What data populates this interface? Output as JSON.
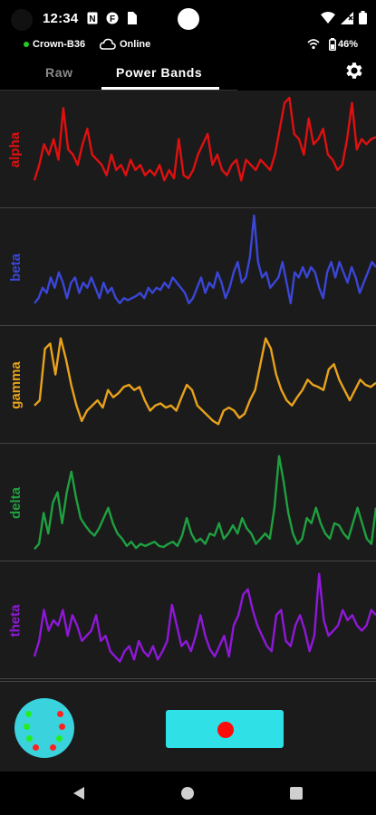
{
  "status_bar": {
    "time": "12:34",
    "icons": [
      "notification-icon",
      "app-icon",
      "sim-card-icon",
      "wifi-icon",
      "signal-icon",
      "battery-icon"
    ]
  },
  "device_status": {
    "device_name": "Crown-B36",
    "connection": "Online",
    "battery_percent": "46%",
    "connected_color": "#22cc22"
  },
  "tabs": [
    {
      "label": "Raw",
      "selected": false
    },
    {
      "label": "Power Bands",
      "selected": true
    }
  ],
  "settings_icon": "gear-icon",
  "bands": [
    {
      "name": "alpha",
      "color": "#e01010",
      "values": [
        0.2,
        0.35,
        0.55,
        0.45,
        0.6,
        0.4,
        0.9,
        0.5,
        0.45,
        0.35,
        0.55,
        0.7,
        0.45,
        0.4,
        0.35,
        0.25,
        0.45,
        0.3,
        0.35,
        0.25,
        0.4,
        0.3,
        0.35,
        0.25,
        0.3,
        0.25,
        0.35,
        0.2,
        0.3,
        0.22,
        0.6,
        0.25,
        0.22,
        0.3,
        0.45,
        0.55,
        0.65,
        0.35,
        0.45,
        0.3,
        0.25,
        0.35,
        0.4,
        0.2,
        0.4,
        0.35,
        0.3,
        0.4,
        0.35,
        0.3,
        0.45,
        0.7,
        0.95,
        1.0,
        0.65,
        0.6,
        0.45,
        0.8,
        0.55,
        0.6,
        0.7,
        0.45,
        0.4,
        0.3,
        0.35,
        0.6,
        0.95,
        0.5,
        0.6,
        0.55,
        0.6,
        0.62
      ]
    },
    {
      "name": "beta",
      "color": "#3a46d8",
      "values": [
        0.15,
        0.2,
        0.3,
        0.25,
        0.4,
        0.3,
        0.45,
        0.35,
        0.2,
        0.35,
        0.4,
        0.25,
        0.35,
        0.3,
        0.4,
        0.3,
        0.2,
        0.35,
        0.25,
        0.3,
        0.2,
        0.15,
        0.2,
        0.18,
        0.2,
        0.22,
        0.25,
        0.2,
        0.3,
        0.25,
        0.3,
        0.28,
        0.35,
        0.3,
        0.4,
        0.35,
        0.3,
        0.25,
        0.15,
        0.2,
        0.3,
        0.4,
        0.25,
        0.35,
        0.3,
        0.45,
        0.35,
        0.2,
        0.3,
        0.45,
        0.55,
        0.35,
        0.4,
        0.6,
        1.0,
        0.55,
        0.4,
        0.45,
        0.3,
        0.35,
        0.4,
        0.55,
        0.35,
        0.15,
        0.45,
        0.4,
        0.5,
        0.4,
        0.5,
        0.45,
        0.3,
        0.2,
        0.45,
        0.55,
        0.4,
        0.55,
        0.45,
        0.35,
        0.5,
        0.4,
        0.25,
        0.35,
        0.45,
        0.55,
        0.5
      ]
    },
    {
      "name": "gamma",
      "color": "#e8a21c",
      "values": [
        0.3,
        0.35,
        0.85,
        0.9,
        0.6,
        0.95,
        0.75,
        0.5,
        0.3,
        0.15,
        0.25,
        0.3,
        0.35,
        0.28,
        0.45,
        0.38,
        0.42,
        0.48,
        0.5,
        0.45,
        0.48,
        0.35,
        0.25,
        0.3,
        0.32,
        0.28,
        0.3,
        0.25,
        0.38,
        0.5,
        0.45,
        0.3,
        0.25,
        0.2,
        0.15,
        0.12,
        0.25,
        0.28,
        0.25,
        0.18,
        0.22,
        0.35,
        0.45,
        0.7,
        0.95,
        0.85,
        0.6,
        0.45,
        0.35,
        0.3,
        0.38,
        0.45,
        0.55,
        0.5,
        0.48,
        0.45,
        0.65,
        0.7,
        0.55,
        0.45,
        0.35,
        0.45,
        0.55,
        0.5,
        0.48,
        0.52
      ]
    },
    {
      "name": "delta",
      "color": "#1fa040",
      "values": [
        0.05,
        0.1,
        0.4,
        0.2,
        0.5,
        0.6,
        0.3,
        0.6,
        0.8,
        0.55,
        0.35,
        0.28,
        0.22,
        0.18,
        0.25,
        0.35,
        0.45,
        0.3,
        0.2,
        0.15,
        0.08,
        0.12,
        0.06,
        0.1,
        0.08,
        0.1,
        0.12,
        0.08,
        0.07,
        0.1,
        0.12,
        0.08,
        0.18,
        0.35,
        0.2,
        0.12,
        0.15,
        0.1,
        0.2,
        0.18,
        0.3,
        0.15,
        0.2,
        0.28,
        0.2,
        0.35,
        0.25,
        0.2,
        0.1,
        0.15,
        0.2,
        0.15,
        0.45,
        0.95,
        0.7,
        0.4,
        0.2,
        0.1,
        0.15,
        0.35,
        0.3,
        0.45,
        0.3,
        0.2,
        0.15,
        0.3,
        0.28,
        0.2,
        0.15,
        0.3,
        0.45,
        0.3,
        0.15,
        0.1,
        0.45
      ]
    },
    {
      "name": "theta",
      "color": "#8f18d8",
      "values": [
        0.15,
        0.3,
        0.6,
        0.4,
        0.5,
        0.45,
        0.6,
        0.35,
        0.55,
        0.45,
        0.3,
        0.35,
        0.4,
        0.55,
        0.3,
        0.35,
        0.2,
        0.15,
        0.1,
        0.2,
        0.25,
        0.12,
        0.3,
        0.2,
        0.15,
        0.25,
        0.12,
        0.2,
        0.3,
        0.65,
        0.45,
        0.25,
        0.3,
        0.2,
        0.35,
        0.55,
        0.35,
        0.22,
        0.15,
        0.25,
        0.35,
        0.15,
        0.45,
        0.55,
        0.75,
        0.8,
        0.6,
        0.45,
        0.35,
        0.25,
        0.2,
        0.55,
        0.6,
        0.3,
        0.25,
        0.45,
        0.55,
        0.4,
        0.2,
        0.35,
        0.95,
        0.5,
        0.35,
        0.4,
        0.45,
        0.6,
        0.5,
        0.55,
        0.45,
        0.4,
        0.45,
        0.6,
        0.55
      ]
    }
  ],
  "bottom": {
    "headset_color": "#3ad3dd",
    "sensor_colors": [
      "#22ee22",
      "#ff2020",
      "#22ee22",
      "#ff2020",
      "#22ee22",
      "#22ee22",
      "#ff2020",
      "#ff2020"
    ],
    "record_button_color": "#2fe0e6",
    "record_dot_color": "#ff0a0a"
  },
  "nav": {
    "icons": [
      "back-icon",
      "home-icon",
      "recents-icon"
    ]
  }
}
